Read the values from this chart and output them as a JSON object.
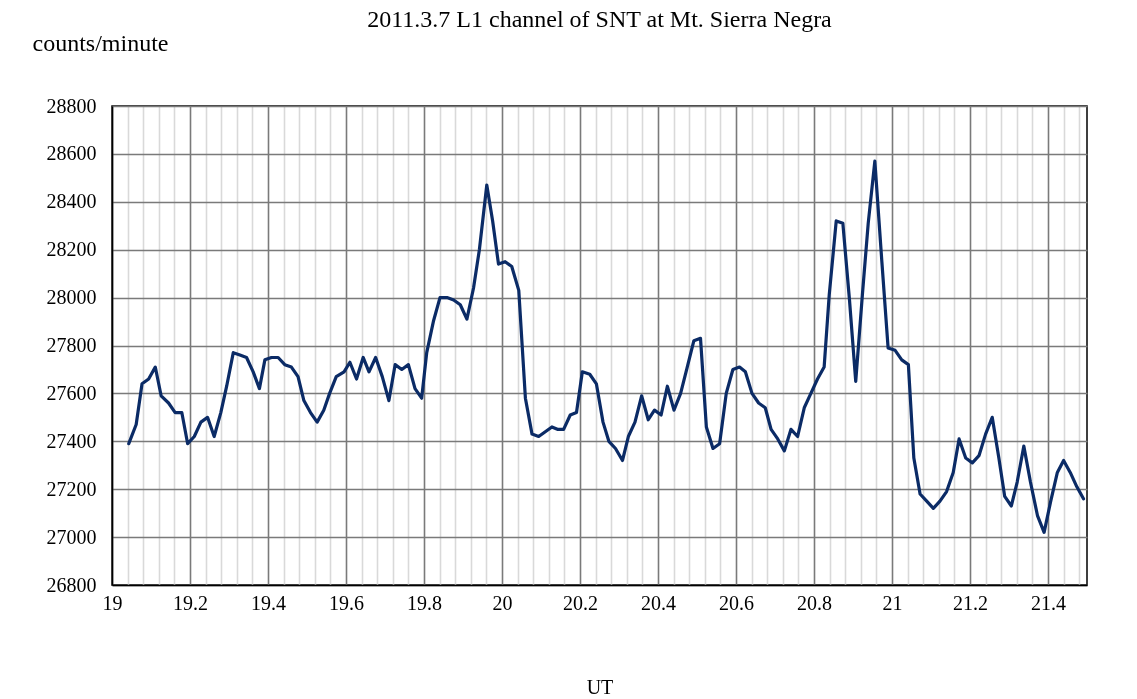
{
  "chart_data": {
    "type": "line",
    "title": "2011.3.7 L1 channel of SNT at Mt. Sierra Negra",
    "ylabel": "counts/minute",
    "xlabel": "UT",
    "xlim": [
      19,
      21.5
    ],
    "xticks": [
      19,
      {
        "value": 19.04,
        "label": null
      },
      {
        "value": 19.08,
        "label": null
      },
      {
        "value": 19.12,
        "label": null
      },
      {
        "value": 19.16,
        "label": null
      },
      19.2,
      {
        "value": 19.24,
        "label": null
      },
      {
        "value": 19.28,
        "label": null
      },
      {
        "value": 19.32,
        "label": null
      },
      {
        "value": 19.36,
        "label": null
      },
      19.4,
      {
        "value": 19.44,
        "label": null
      },
      {
        "value": 19.48,
        "label": null
      },
      {
        "value": 19.52,
        "label": null
      },
      {
        "value": 19.56,
        "label": null
      },
      19.6,
      {
        "value": 19.64,
        "label": null
      },
      {
        "value": 19.68,
        "label": null
      },
      {
        "value": 19.72,
        "label": null
      },
      {
        "value": 19.76,
        "label": null
      },
      19.8,
      {
        "value": 19.84,
        "label": null
      },
      {
        "value": 19.88,
        "label": null
      },
      {
        "value": 19.92,
        "label": null
      },
      {
        "value": 19.96,
        "label": null
      },
      20,
      {
        "value": 20.04,
        "label": null
      },
      {
        "value": 20.08,
        "label": null
      },
      {
        "value": 20.12,
        "label": null
      },
      {
        "value": 20.16,
        "label": null
      },
      20.2,
      {
        "value": 20.24,
        "label": null
      },
      {
        "value": 20.28,
        "label": null
      },
      {
        "value": 20.32,
        "label": null
      },
      {
        "value": 20.36,
        "label": null
      },
      20.4,
      {
        "value": 20.44,
        "label": null
      },
      {
        "value": 20.48,
        "label": null
      },
      {
        "value": 20.52,
        "label": null
      },
      {
        "value": 20.56,
        "label": null
      },
      20.6,
      {
        "value": 20.64,
        "label": null
      },
      {
        "value": 20.68,
        "label": null
      },
      {
        "value": 20.72,
        "label": null
      },
      {
        "value": 20.76,
        "label": null
      },
      20.8,
      {
        "value": 20.84,
        "label": null
      },
      {
        "value": 20.88,
        "label": null
      },
      {
        "value": 20.92,
        "label": null
      },
      {
        "value": 20.96,
        "label": null
      },
      21,
      {
        "value": 21.04,
        "label": null
      },
      {
        "value": 21.08,
        "label": null
      },
      {
        "value": 21.12,
        "label": null
      },
      {
        "value": 21.16,
        "label": null
      },
      21.2,
      {
        "value": 21.24,
        "label": null
      },
      {
        "value": 21.28,
        "label": null
      },
      {
        "value": 21.32,
        "label": null
      },
      {
        "value": 21.36,
        "label": null
      },
      21.4,
      {
        "value": 21.44,
        "label": null
      },
      {
        "value": 21.48,
        "label": null
      }
    ],
    "ylim": [
      26800,
      28800
    ],
    "yticks": [
      26800,
      27000,
      27200,
      27400,
      27600,
      27800,
      28000,
      28200,
      28400,
      28600,
      28800
    ],
    "grid": true,
    "series": [
      {
        "color": "#0b2b66",
        "x": [
          19.043,
          19.062,
          19.077,
          19.094,
          19.111,
          19.126,
          19.145,
          19.162,
          19.179,
          19.194,
          19.211,
          19.228,
          19.245,
          19.262,
          19.279,
          19.294,
          19.311,
          19.328,
          19.345,
          19.362,
          19.378,
          19.392,
          19.409,
          19.426,
          19.443,
          19.46,
          19.477,
          19.492,
          19.509,
          19.526,
          19.543,
          19.558,
          19.575,
          19.595,
          19.61,
          19.627,
          19.644,
          19.659,
          19.676,
          19.693,
          19.71,
          19.726,
          19.743,
          19.76,
          19.777,
          19.794,
          19.807,
          19.824,
          19.841,
          19.859,
          19.876,
          19.893,
          19.91,
          19.927,
          19.942,
          19.961,
          19.976,
          19.991,
          20.008,
          20.025,
          20.043,
          20.06,
          20.077,
          20.094,
          20.111,
          20.128,
          20.142,
          20.158,
          20.175,
          20.191,
          20.206,
          20.225,
          20.242,
          20.259,
          20.274,
          20.291,
          20.309,
          20.324,
          20.341,
          20.358,
          20.375,
          20.391,
          20.408,
          20.424,
          20.441,
          20.458,
          20.475,
          20.492,
          20.509,
          20.524,
          20.541,
          20.558,
          20.575,
          20.592,
          20.609,
          20.624,
          20.641,
          20.658,
          20.675,
          20.69,
          20.707,
          20.724,
          20.741,
          20.758,
          20.775,
          20.792,
          20.809,
          20.826,
          20.839,
          20.857,
          20.874,
          20.891,
          20.907,
          20.924,
          20.939,
          20.956,
          20.974,
          20.99,
          21.008,
          21.025,
          21.042,
          21.056,
          21.072,
          21.089,
          21.106,
          21.123,
          21.14,
          21.157,
          21.172,
          21.189,
          21.206,
          21.223,
          21.24,
          21.257,
          21.274,
          21.289,
          21.306,
          21.321,
          21.338,
          21.355,
          21.373,
          21.39,
          21.407,
          21.424,
          21.44,
          21.457,
          21.474,
          21.491
        ],
        "values": [
          27390,
          27470,
          27640,
          27660,
          27710,
          27590,
          27560,
          27520,
          27520,
          27390,
          27420,
          27480,
          27500,
          27420,
          27520,
          27630,
          27770,
          27760,
          27750,
          27690,
          27620,
          27740,
          27750,
          27750,
          27720,
          27710,
          27670,
          27570,
          27520,
          27480,
          27530,
          27600,
          27670,
          27690,
          27730,
          27660,
          27750,
          27690,
          27750,
          27670,
          27570,
          27720,
          27700,
          27720,
          27620,
          27580,
          27770,
          27900,
          28000,
          28000,
          27990,
          27970,
          27910,
          28040,
          28200,
          28470,
          28320,
          28140,
          28150,
          28130,
          28030,
          27580,
          27430,
          27420,
          27440,
          27460,
          27450,
          27450,
          27510,
          27520,
          27690,
          27680,
          27640,
          27480,
          27400,
          27370,
          27320,
          27420,
          27480,
          27590,
          27490,
          27530,
          27510,
          27630,
          27530,
          27600,
          27710,
          27820,
          27830,
          27460,
          27370,
          27390,
          27600,
          27700,
          27710,
          27690,
          27600,
          27560,
          27540,
          27450,
          27410,
          27360,
          27450,
          27420,
          27540,
          27600,
          27660,
          27710,
          28010,
          28320,
          28310,
          27990,
          27650,
          28010,
          28310,
          28570,
          28150,
          27790,
          27780,
          27740,
          27720,
          27330,
          27180,
          27150,
          27120,
          27150,
          27190,
          27270,
          27410,
          27330,
          27310,
          27340,
          27430,
          27500,
          27330,
          27170,
          27130,
          27230,
          27380,
          27230,
          27090,
          27020,
          27150,
          27270,
          27320,
          27270,
          27210,
          27160
        ]
      }
    ]
  }
}
